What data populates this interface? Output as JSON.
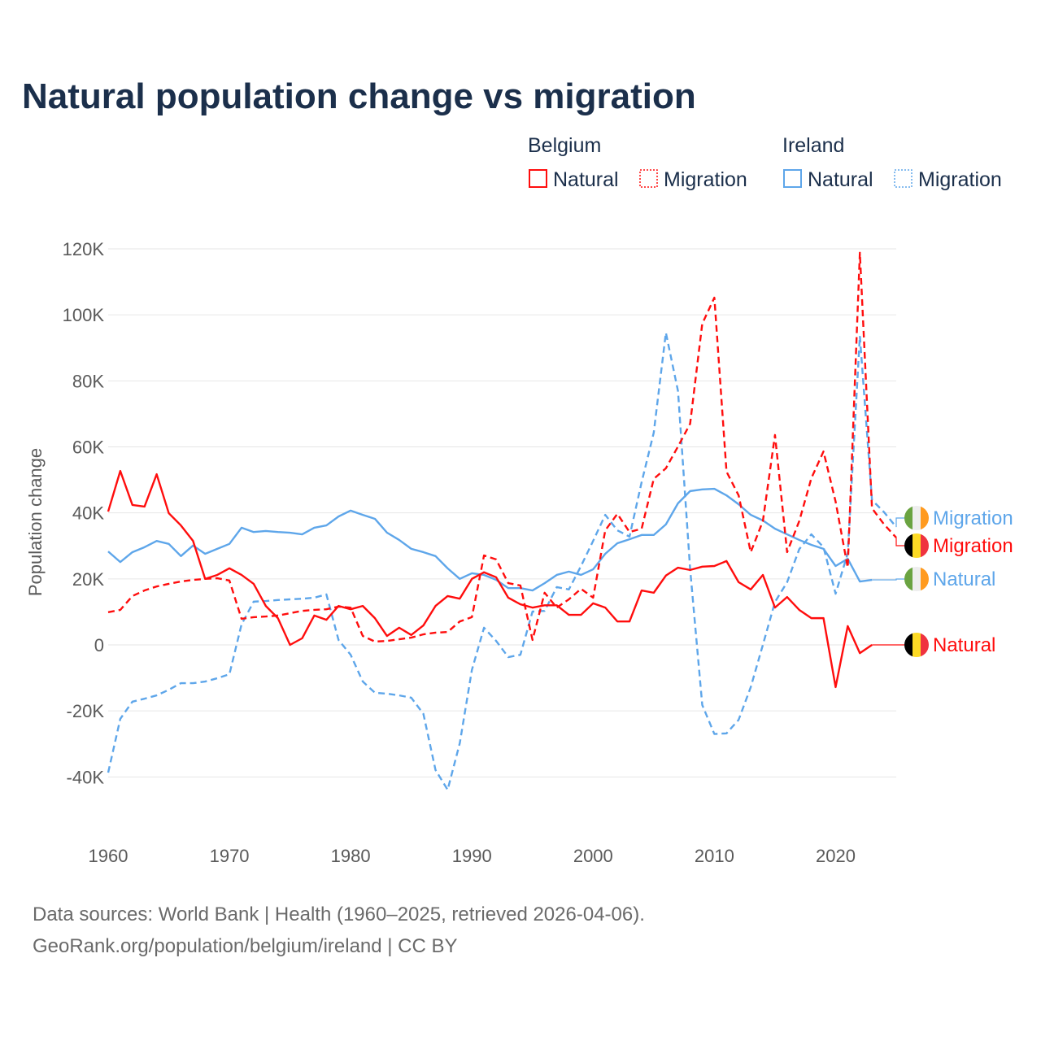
{
  "chart_data": {
    "type": "line",
    "title": "Natural population change vs migration",
    "xlabel": "",
    "ylabel": "Population change",
    "xlim": [
      1960,
      2025
    ],
    "ylim": [
      -45000,
      120000
    ],
    "grid": true,
    "legend_placement": "top-right",
    "y_ticks": [
      {
        "value": -40000,
        "label": "-40K"
      },
      {
        "value": -20000,
        "label": "-20K"
      },
      {
        "value": 0,
        "label": "0"
      },
      {
        "value": 20000,
        "label": "20K"
      },
      {
        "value": 40000,
        "label": "40K"
      },
      {
        "value": 60000,
        "label": "60K"
      },
      {
        "value": 80000,
        "label": "80K"
      },
      {
        "value": 100000,
        "label": "100K"
      },
      {
        "value": 120000,
        "label": "120K"
      }
    ],
    "x_ticks": [
      {
        "value": 1960,
        "label": "1960"
      },
      {
        "value": 1970,
        "label": "1970"
      },
      {
        "value": 1980,
        "label": "1980"
      },
      {
        "value": 1990,
        "label": "1990"
      },
      {
        "value": 2000,
        "label": "2000"
      },
      {
        "value": 2010,
        "label": "2010"
      },
      {
        "value": 2020,
        "label": "2020"
      }
    ],
    "legend": {
      "groups": [
        {
          "name": "Belgium",
          "items": [
            {
              "label": "Natural",
              "style": "solid"
            },
            {
              "label": "Migration",
              "style": "dotted"
            }
          ],
          "color": "#ff0d0d"
        },
        {
          "name": "Ireland",
          "items": [
            {
              "label": "Natural",
              "style": "solid"
            },
            {
              "label": "Migration",
              "style": "dotted"
            }
          ],
          "color": "#5ea6ea"
        }
      ]
    },
    "x_start": 1960,
    "series": [
      {
        "name": "Belgium Natural",
        "country": "Belgium",
        "label": "Natural",
        "color": "#ff0d0d",
        "dash": false,
        "flag": "belgium",
        "values": [
          40400,
          52700,
          42400,
          41900,
          51700,
          39900,
          36200,
          31500,
          20000,
          21200,
          23200,
          21200,
          18500,
          11800,
          8100,
          0,
          2000,
          8900,
          7600,
          11800,
          10800,
          11800,
          8100,
          2700,
          5200,
          3000,
          5900,
          11800,
          14800,
          14000,
          20000,
          22000,
          20500,
          14300,
          12300,
          11300,
          12000,
          12000,
          9100,
          9100,
          12600,
          11300,
          7100,
          7100,
          16500,
          15800,
          21000,
          23400,
          22700,
          23700,
          23900,
          25400,
          19000,
          16800,
          21200,
          11300,
          14500,
          10600,
          8100,
          8100,
          -12800,
          5700,
          -2500,
          0
        ]
      },
      {
        "name": "Belgium Migration",
        "country": "Belgium",
        "label": "Migration",
        "color": "#ff0d0d",
        "dash": true,
        "flag": "belgium",
        "values": [
          9900,
          10600,
          14800,
          16500,
          17700,
          18500,
          19200,
          19700,
          20000,
          20200,
          19500,
          7900,
          8400,
          8600,
          8900,
          9600,
          10300,
          10600,
          10800,
          11600,
          11300,
          2700,
          1000,
          1200,
          1700,
          2200,
          3200,
          3700,
          3900,
          7100,
          8400,
          27100,
          25900,
          18700,
          18000,
          1500,
          15800,
          11300,
          13800,
          17000,
          14300,
          34700,
          39700,
          34200,
          35200,
          50300,
          53500,
          60100,
          67000,
          97300,
          105200,
          52500,
          45300,
          28100,
          37500,
          63600,
          28100,
          37500,
          50500,
          58600,
          43400,
          23400,
          118800,
          41400,
          36500,
          32500
        ]
      },
      {
        "name": "Ireland Natural",
        "country": "Ireland",
        "label": "Natural",
        "color": "#5ea6ea",
        "dash": false,
        "flag": "ireland",
        "values": [
          28300,
          25100,
          28100,
          29600,
          31500,
          30600,
          26900,
          30100,
          27600,
          29100,
          30600,
          35500,
          34200,
          34500,
          34200,
          34000,
          33500,
          35500,
          36200,
          38900,
          40700,
          39400,
          38200,
          34000,
          31800,
          29100,
          28100,
          26900,
          23200,
          20000,
          21700,
          21200,
          19700,
          17200,
          17200,
          16500,
          18700,
          21200,
          22200,
          21200,
          22900,
          27600,
          30800,
          32000,
          33300,
          33300,
          36500,
          42900,
          46600,
          47100,
          47300,
          45300,
          42600,
          39400,
          37700,
          35200,
          33500,
          31800,
          30300,
          29100,
          23900,
          26100,
          19200,
          19700
        ]
      },
      {
        "name": "Ireland Migration",
        "country": "Ireland",
        "label": "Migration",
        "color": "#5ea6ea",
        "dash": true,
        "flag": "ireland",
        "values": [
          -38700,
          -22400,
          -17200,
          -16300,
          -15300,
          -13600,
          -11600,
          -11600,
          -11100,
          -10100,
          -8900,
          6200,
          13100,
          13300,
          13600,
          13800,
          14000,
          14300,
          15300,
          1500,
          -3000,
          -11100,
          -14500,
          -14800,
          -15300,
          -16000,
          -20900,
          -37900,
          -43900,
          -29800,
          -7600,
          5200,
          1200,
          -3700,
          -3000,
          10100,
          10300,
          17500,
          16800,
          23900,
          31500,
          39400,
          34700,
          32800,
          49300,
          64300,
          94600,
          76900,
          23000,
          -18200,
          -27000,
          -26800,
          -22700,
          -12800,
          0,
          13000,
          19000,
          29000,
          33500,
          29600,
          15500,
          27800,
          93600,
          43900,
          40200,
          35700
        ]
      }
    ]
  },
  "footer": {
    "line1": "Data sources: World Bank | Health (1960–2025, retrieved 2026-04-06).",
    "line2": "GeoRank.org/population/belgium/ireland | CC BY"
  }
}
